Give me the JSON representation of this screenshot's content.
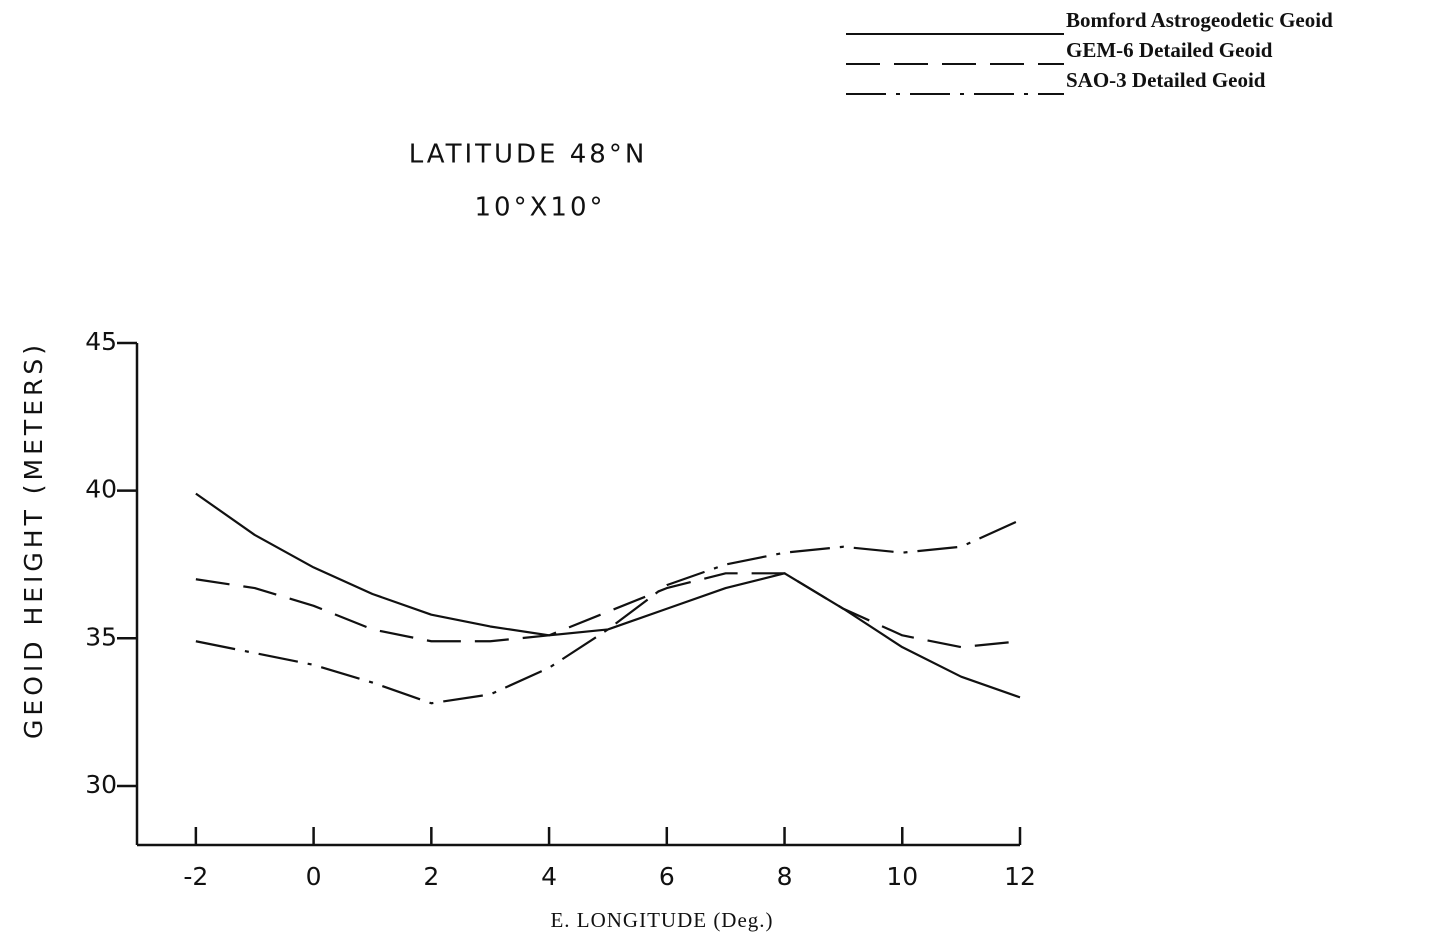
{
  "chart_data": {
    "type": "line",
    "title": "LATITUDE 48°N",
    "subtitle": "10°X10°",
    "x_label": "E. LONGITUDE (Deg.)",
    "y_label": "GEOID HEIGHT (METERS)",
    "x": [
      -2,
      -1,
      0,
      1,
      2,
      3,
      4,
      5,
      6,
      7,
      8,
      9,
      10,
      11,
      12
    ],
    "series": [
      {
        "name": "Bomford Astrogeodetic Geoid",
        "color": "#111111",
        "line_style": "solid",
        "values": [
          39.9,
          38.5,
          37.4,
          36.5,
          35.8,
          35.4,
          35.1,
          35.3,
          36.0,
          36.7,
          37.2,
          36.0,
          34.7,
          33.7,
          33.0
        ]
      },
      {
        "name": "GEM-6 Detailed Geoid",
        "color": "#111111",
        "line_style": "dashed",
        "values": [
          37.0,
          36.7,
          36.1,
          35.3,
          34.9,
          34.9,
          35.1,
          35.9,
          36.7,
          37.2,
          37.2,
          36.0,
          35.1,
          34.7,
          34.9
        ]
      },
      {
        "name": "SAO-3 Detailed Geoid",
        "color": "#111111",
        "line_style": "dashdot",
        "values": [
          34.9,
          34.5,
          34.1,
          33.5,
          32.8,
          33.1,
          34.0,
          35.3,
          36.8,
          37.5,
          37.9,
          38.1,
          37.9,
          38.1,
          39.0
        ]
      }
    ],
    "xlim": [
      -3,
      12
    ],
    "ylim": [
      28,
      45
    ],
    "xticks": [
      -2,
      0,
      2,
      4,
      6,
      8,
      10,
      12
    ],
    "yticks": [
      30,
      35,
      40,
      45
    ],
    "legend": "upper right"
  }
}
